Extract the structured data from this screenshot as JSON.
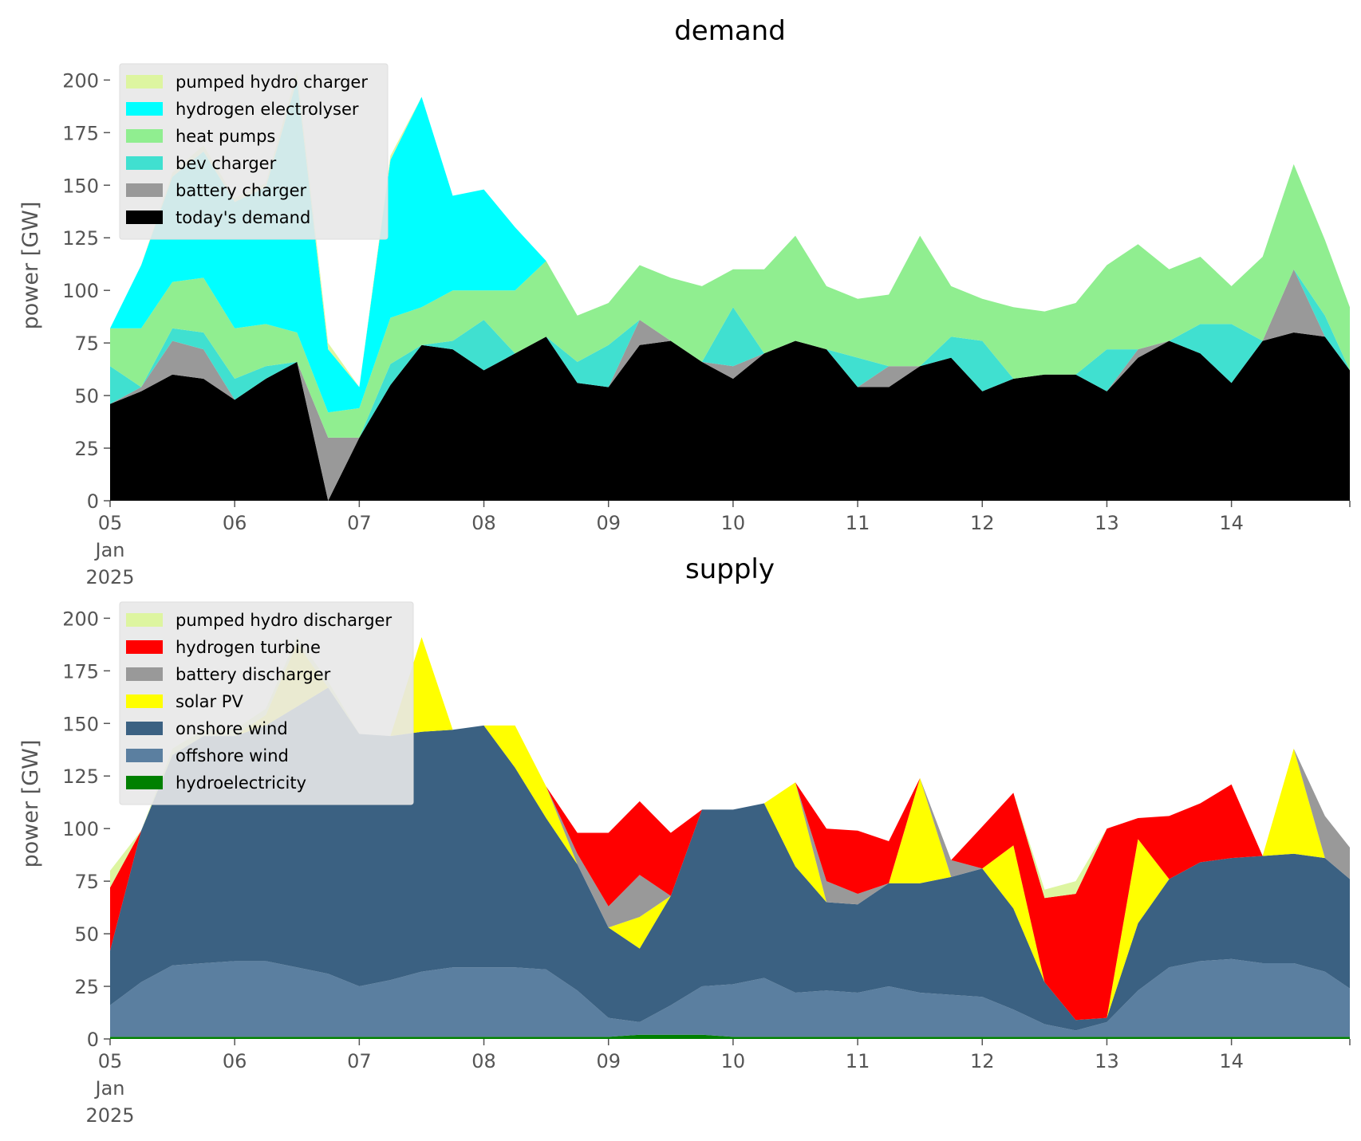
{
  "chart_data": [
    {
      "type": "area",
      "stacked": true,
      "title": "demand",
      "xlabel": "",
      "ylabel": "power [GW]",
      "ylim": [
        0,
        210
      ],
      "yticks": [
        0,
        25,
        50,
        75,
        100,
        125,
        150,
        175,
        200
      ],
      "xlim": [
        0,
        9.95
      ],
      "x_unit": "days since 05 Jan 2025",
      "x_tick_labels": [
        "05\nJan\n2025",
        "06",
        "07",
        "08",
        "09",
        "10",
        "11",
        "12",
        "13",
        "14"
      ],
      "grid": false,
      "legend_position": "top-left",
      "x": [
        0,
        0.25,
        0.5,
        0.75,
        1.0,
        1.25,
        1.5,
        1.75,
        2.0,
        2.25,
        2.5,
        2.75,
        3.0,
        3.25,
        3.5,
        3.75,
        4.0,
        4.25,
        4.5,
        4.75,
        5.0,
        5.25,
        5.5,
        5.75,
        6.0,
        6.25,
        6.5,
        6.75,
        7.0,
        7.25,
        7.5,
        7.75,
        8.0,
        8.25,
        8.5,
        8.75,
        9.0,
        9.25,
        9.5,
        9.75,
        9.95
      ],
      "series": [
        {
          "name": "today's demand",
          "color": "#000000",
          "values": [
            46,
            52,
            60,
            58,
            48,
            58,
            66,
            0,
            30,
            55,
            74,
            72,
            62,
            70,
            78,
            56,
            54,
            74,
            76,
            66,
            58,
            70,
            76,
            72,
            54,
            54,
            64,
            68,
            52,
            58,
            60,
            60,
            52,
            68,
            76,
            70,
            56,
            76,
            80,
            78,
            62
          ]
        },
        {
          "name": "battery charger",
          "color": "#999999",
          "values": [
            0,
            2,
            16,
            14,
            0,
            0,
            0,
            30,
            0,
            0,
            0,
            0,
            0,
            0,
            0,
            0,
            0,
            12,
            0,
            0,
            6,
            0,
            0,
            0,
            0,
            10,
            0,
            0,
            0,
            0,
            0,
            0,
            0,
            4,
            0,
            0,
            0,
            0,
            30,
            0,
            0
          ]
        },
        {
          "name": "bev charger",
          "color": "#40e0d0",
          "values": [
            18,
            0,
            6,
            8,
            10,
            6,
            0,
            0,
            0,
            10,
            0,
            4,
            24,
            0,
            0,
            10,
            20,
            0,
            0,
            0,
            28,
            0,
            0,
            0,
            14,
            0,
            0,
            10,
            24,
            0,
            0,
            0,
            20,
            0,
            0,
            14,
            28,
            0,
            0,
            10,
            0
          ]
        },
        {
          "name": "heat pumps",
          "color": "#90ee90",
          "values": [
            18,
            28,
            22,
            26,
            24,
            20,
            14,
            12,
            14,
            22,
            18,
            24,
            14,
            30,
            36,
            22,
            20,
            26,
            30,
            36,
            18,
            40,
            50,
            30,
            28,
            34,
            62,
            24,
            20,
            34,
            30,
            34,
            40,
            50,
            34,
            32,
            18,
            40,
            50,
            36,
            30
          ]
        },
        {
          "name": "hydrogen electrolyser",
          "color": "#00ffff",
          "values": [
            0,
            30,
            50,
            60,
            60,
            65,
            120,
            30,
            10,
            75,
            100,
            45,
            48,
            30,
            0,
            0,
            0,
            0,
            0,
            0,
            0,
            0,
            0,
            0,
            0,
            0,
            0,
            0,
            0,
            0,
            0,
            0,
            0,
            0,
            0,
            0,
            0,
            0,
            0,
            0,
            0
          ]
        },
        {
          "name": "pumped hydro charger",
          "color": "#ddf5a0",
          "values": [
            0,
            0,
            2,
            3,
            2,
            2,
            4,
            3,
            0,
            2,
            0,
            0,
            0,
            0,
            0,
            0,
            0,
            0,
            0,
            0,
            0,
            0,
            0,
            0,
            0,
            0,
            0,
            0,
            0,
            0,
            0,
            0,
            0,
            0,
            0,
            0,
            0,
            0,
            0,
            0,
            0
          ]
        }
      ],
      "legend": [
        "pumped hydro charger",
        "hydrogen electrolyser",
        "heat pumps",
        "bev charger",
        "battery charger",
        "today's demand"
      ]
    },
    {
      "type": "area",
      "stacked": true,
      "title": "supply",
      "xlabel": "",
      "ylabel": "power [GW]",
      "ylim": [
        0,
        210
      ],
      "yticks": [
        0,
        25,
        50,
        75,
        100,
        125,
        150,
        175,
        200
      ],
      "xlim": [
        0,
        9.95
      ],
      "x_unit": "days since 05 Jan 2025",
      "x_tick_labels": [
        "05\nJan\n2025",
        "06",
        "07",
        "08",
        "09",
        "10",
        "11",
        "12",
        "13",
        "14"
      ],
      "grid": false,
      "legend_position": "top-left",
      "x": [
        0,
        0.25,
        0.5,
        0.75,
        1.0,
        1.25,
        1.5,
        1.75,
        2.0,
        2.25,
        2.5,
        2.75,
        3.0,
        3.25,
        3.5,
        3.75,
        4.0,
        4.25,
        4.5,
        4.75,
        5.0,
        5.25,
        5.5,
        5.75,
        6.0,
        6.25,
        6.5,
        6.75,
        7.0,
        7.25,
        7.5,
        7.75,
        8.0,
        8.25,
        8.5,
        8.75,
        9.0,
        9.25,
        9.5,
        9.75,
        9.95
      ],
      "series": [
        {
          "name": "hydroelectricity",
          "color": "#008000",
          "values": [
            1,
            1,
            1,
            1,
            1,
            1,
            1,
            1,
            1,
            1,
            1,
            1,
            1,
            1,
            1,
            1,
            1,
            2,
            2,
            2,
            1,
            1,
            1,
            1,
            1,
            1,
            1,
            1,
            1,
            1,
            1,
            1,
            1,
            1,
            1,
            1,
            1,
            1,
            1,
            1,
            1
          ]
        },
        {
          "name": "offshore wind",
          "color": "#5b7fa0",
          "values": [
            15,
            26,
            34,
            35,
            36,
            36,
            33,
            30,
            24,
            27,
            31,
            33,
            33,
            33,
            32,
            22,
            9,
            6,
            14,
            23,
            25,
            28,
            21,
            22,
            21,
            24,
            21,
            20,
            19,
            13,
            6,
            3,
            7,
            22,
            33,
            36,
            37,
            35,
            35,
            31,
            23
          ]
        },
        {
          "name": "onshore wind",
          "color": "#3b6182",
          "values": [
            26,
            72,
            100,
            108,
            107,
            112,
            124,
            136,
            120,
            116,
            114,
            113,
            115,
            95,
            72,
            60,
            43,
            35,
            52,
            84,
            83,
            83,
            60,
            42,
            42,
            49,
            52,
            56,
            61,
            48,
            20,
            5,
            2,
            32,
            42,
            47,
            48,
            51,
            52,
            54,
            52
          ]
        },
        {
          "name": "solar PV",
          "color": "#ffff00",
          "values": [
            0,
            0,
            0,
            0,
            0,
            5,
            30,
            0,
            0,
            0,
            45,
            0,
            0,
            20,
            15,
            0,
            0,
            15,
            0,
            0,
            0,
            0,
            40,
            0,
            0,
            0,
            50,
            0,
            0,
            30,
            0,
            0,
            0,
            40,
            0,
            0,
            0,
            0,
            50,
            0,
            0
          ]
        },
        {
          "name": "battery discharger",
          "color": "#999999",
          "values": [
            0,
            0,
            0,
            0,
            0,
            0,
            0,
            0,
            0,
            0,
            0,
            0,
            0,
            0,
            0,
            5,
            10,
            20,
            0,
            0,
            0,
            0,
            0,
            10,
            5,
            0,
            0,
            8,
            0,
            0,
            0,
            0,
            0,
            0,
            0,
            0,
            0,
            0,
            0,
            20,
            15
          ]
        },
        {
          "name": "hydrogen turbine",
          "color": "#ff0000",
          "values": [
            30,
            0,
            0,
            0,
            0,
            0,
            0,
            0,
            0,
            0,
            0,
            0,
            0,
            0,
            0,
            10,
            35,
            35,
            30,
            0,
            0,
            0,
            0,
            25,
            30,
            20,
            0,
            0,
            20,
            25,
            40,
            60,
            90,
            10,
            30,
            28,
            35,
            0,
            0,
            0,
            0
          ]
        },
        {
          "name": "pumped hydro discharger",
          "color": "#ddf5a0",
          "values": [
            8,
            0,
            3,
            3,
            3,
            3,
            3,
            3,
            0,
            0,
            0,
            0,
            0,
            0,
            0,
            0,
            0,
            0,
            0,
            0,
            0,
            0,
            0,
            0,
            0,
            0,
            0,
            0,
            0,
            0,
            4,
            6,
            0,
            0,
            0,
            0,
            0,
            0,
            0,
            0,
            0
          ]
        }
      ],
      "legend": [
        "pumped hydro discharger",
        "hydrogen turbine",
        "battery discharger",
        "solar PV",
        "onshore wind",
        "offshore wind",
        "hydroelectricity"
      ]
    }
  ]
}
